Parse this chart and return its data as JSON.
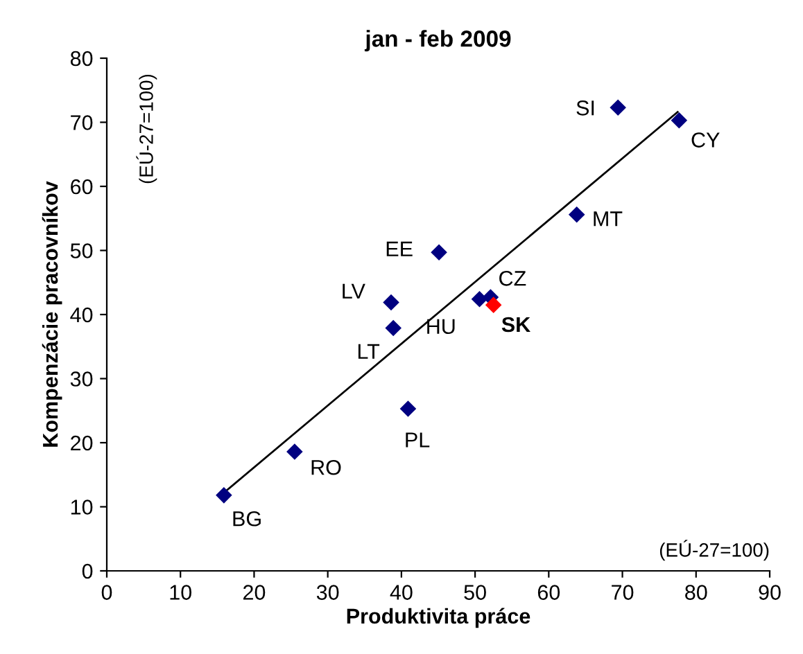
{
  "chart_data": {
    "type": "scatter",
    "title": "jan - feb 2009",
    "xlabel": "Produktivita práce",
    "ylabel": "Kompenzácie pracovníkov",
    "xlim": [
      0,
      90
    ],
    "xticks": [
      0,
      10,
      20,
      30,
      40,
      50,
      60,
      70,
      80,
      90
    ],
    "ylim": [
      0,
      80
    ],
    "yticks": [
      0,
      10,
      20,
      30,
      40,
      50,
      60,
      70,
      80
    ],
    "grid": false,
    "legend": false,
    "marker": "diamond",
    "series": [
      {
        "color": "#000080",
        "x": [
          15.9,
          25.5,
          40.9,
          38.9,
          38.6,
          45.1,
          50.6,
          52.1,
          63.8,
          69.4,
          77.7
        ],
        "values": [
          11.8,
          18.6,
          25.3,
          37.9,
          41.9,
          49.7,
          42.4,
          42.7,
          55.6,
          72.3,
          70.3
        ]
      },
      {
        "name": "SK",
        "color": "#ff0000",
        "x": [
          52.5
        ],
        "values": [
          41.5
        ]
      },
      {
        "type": "line",
        "color": "#000000",
        "marker": "none",
        "x": [
          16.0,
          77.5
        ],
        "values": [
          12.3,
          71.6
        ]
      }
    ],
    "annotations": [
      "(EÚ-27=100)",
      "(EÚ-27=100)",
      {
        "text": "BG",
        "x": 15.9,
        "y": 11.8
      },
      {
        "text": "RO",
        "x": 25.5,
        "y": 18.6
      },
      {
        "text": "PL",
        "x": 40.9,
        "y": 25.3
      },
      {
        "text": "LT",
        "x": 38.9,
        "y": 37.9
      },
      {
        "text": "LV",
        "x": 38.6,
        "y": 41.9
      },
      {
        "text": "EE",
        "x": 45.1,
        "y": 49.7
      },
      {
        "text": "HU",
        "x": 50.6,
        "y": 42.4
      },
      {
        "text": "CZ",
        "x": 52.1,
        "y": 42.7
      },
      {
        "text": "MT",
        "x": 63.8,
        "y": 55.6
      },
      {
        "text": "SI",
        "x": 69.4,
        "y": 72.3
      },
      {
        "text": "CY",
        "x": 77.7,
        "y": 70.3
      }
    ]
  }
}
